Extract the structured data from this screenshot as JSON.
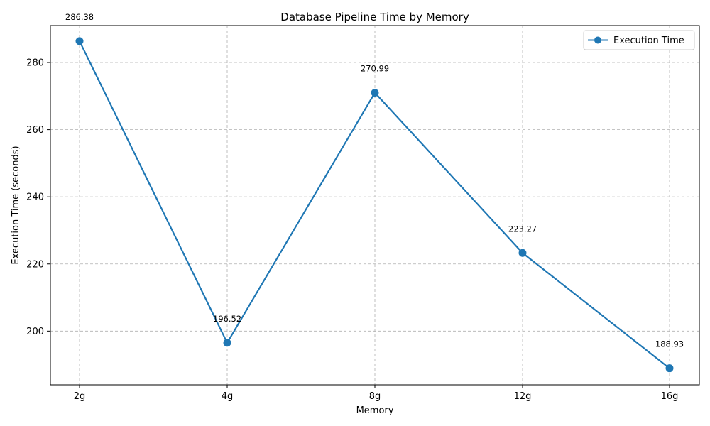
{
  "chart_data": {
    "type": "line",
    "title": "Database Pipeline Time by Memory",
    "xlabel": "Memory",
    "ylabel": "Execution Time (seconds)",
    "categories": [
      "2g",
      "4g",
      "8g",
      "12g",
      "16g"
    ],
    "series": [
      {
        "name": "Execution Time",
        "values": [
          286.38,
          196.52,
          270.99,
          223.27,
          188.93
        ],
        "color": "#1f77b4"
      }
    ],
    "data_labels": [
      "286.38",
      "196.52",
      "270.99",
      "223.27",
      "188.93"
    ],
    "ylim": [
      184,
      291
    ],
    "yticks": [
      200,
      220,
      240,
      260,
      280
    ],
    "grid": true,
    "legend_position": "top-right"
  }
}
